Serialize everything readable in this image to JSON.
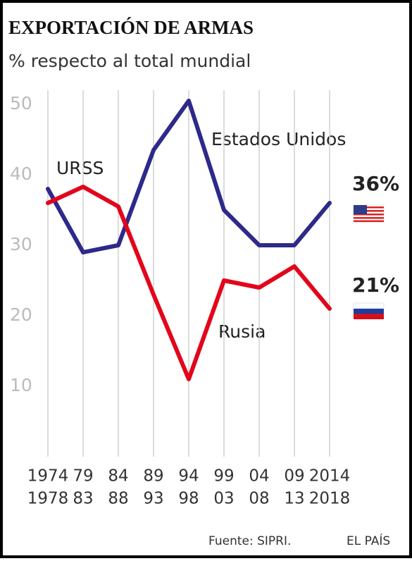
{
  "chart_data": {
    "type": "line",
    "title": "EXPORTACIÓN DE ARMAS",
    "subtitle": "% respecto al total mundial",
    "categories": [
      [
        "1974",
        "1978"
      ],
      [
        "79",
        "83"
      ],
      [
        "84",
        "88"
      ],
      [
        "89",
        "93"
      ],
      [
        "94",
        "98"
      ],
      [
        "99",
        "03"
      ],
      [
        "04",
        "08"
      ],
      [
        "09",
        "13"
      ],
      [
        "2014",
        "2018"
      ]
    ],
    "series": [
      {
        "name": "Estados Unidos",
        "color": "#2e2a8a",
        "values": [
          38,
          29,
          30,
          43.5,
          50.5,
          35,
          30,
          30,
          36
        ],
        "value_labels": [
          null,
          null,
          null,
          null,
          null,
          null,
          null,
          null,
          "36%"
        ]
      },
      {
        "name": "Rusia",
        "color": "#e3051b",
        "values": [
          36,
          38.3,
          35.5,
          23,
          11,
          25,
          24,
          27,
          21
        ],
        "value_labels": [
          null,
          null,
          null,
          null,
          null,
          null,
          null,
          null,
          "21%"
        ]
      }
    ],
    "annotations": [
      "URSS"
    ],
    "ylim": [
      0,
      52
    ],
    "yticks": [
      10,
      20,
      30,
      40,
      50
    ],
    "source": "Fuente: SIPRI.",
    "brand": "EL PAÍS"
  }
}
